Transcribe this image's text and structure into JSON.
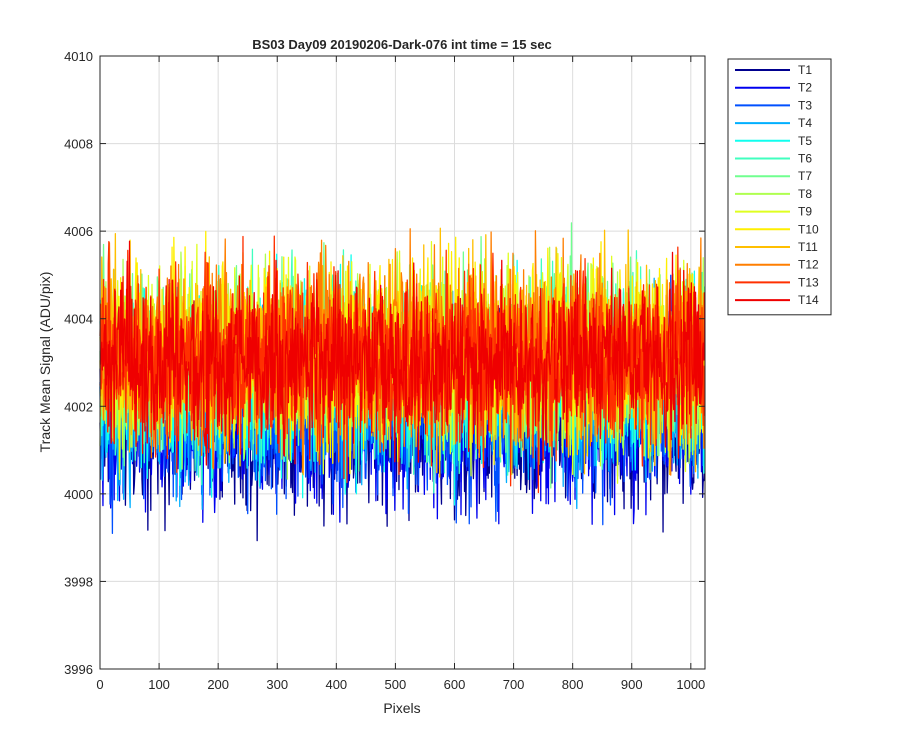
{
  "chart_data": {
    "type": "line",
    "title": "BS03 Day09 20190206-Dark-076 int time = 15 sec",
    "xlabel": "Pixels",
    "ylabel": "Track Mean Signal (ADU/pix)",
    "xlim": [
      0,
      1024
    ],
    "ylim": [
      3996,
      4010
    ],
    "xticks": [
      0,
      100,
      200,
      300,
      400,
      500,
      600,
      700,
      800,
      900,
      1000
    ],
    "yticks": [
      3996,
      3998,
      4000,
      4002,
      4004,
      4006,
      4008,
      4010
    ],
    "grid": true,
    "legend_position": "outside-top-right",
    "samples_per_series": 1024,
    "series": [
      {
        "name": "T1",
        "color": "#00008F",
        "mean": 4001.6,
        "spread": 0.95
      },
      {
        "name": "T2",
        "color": "#0000EF",
        "mean": 4001.7,
        "spread": 0.95
      },
      {
        "name": "T3",
        "color": "#0050FF",
        "mean": 4001.9,
        "spread": 0.95
      },
      {
        "name": "T4",
        "color": "#00AFFF",
        "mean": 4002.3,
        "spread": 1.0
      },
      {
        "name": "T5",
        "color": "#10FFEF",
        "mean": 4002.6,
        "spread": 1.0
      },
      {
        "name": "T6",
        "color": "#40FFBF",
        "mean": 4002.9,
        "spread": 1.0
      },
      {
        "name": "T7",
        "color": "#70FF8F",
        "mean": 4003.0,
        "spread": 1.0
      },
      {
        "name": "T8",
        "color": "#AFFF50",
        "mean": 4003.1,
        "spread": 1.0
      },
      {
        "name": "T9",
        "color": "#DFFF20",
        "mean": 4003.1,
        "spread": 1.0
      },
      {
        "name": "T10",
        "color": "#FFEF00",
        "mean": 4003.2,
        "spread": 1.0
      },
      {
        "name": "T11",
        "color": "#FFBF00",
        "mean": 4003.2,
        "spread": 1.0
      },
      {
        "name": "T12",
        "color": "#FF7F00",
        "mean": 4003.2,
        "spread": 1.0
      },
      {
        "name": "T13",
        "color": "#FF3000",
        "mean": 4003.1,
        "spread": 1.0
      },
      {
        "name": "T14",
        "color": "#EF0000",
        "mean": 4003.0,
        "spread": 0.95
      }
    ]
  }
}
